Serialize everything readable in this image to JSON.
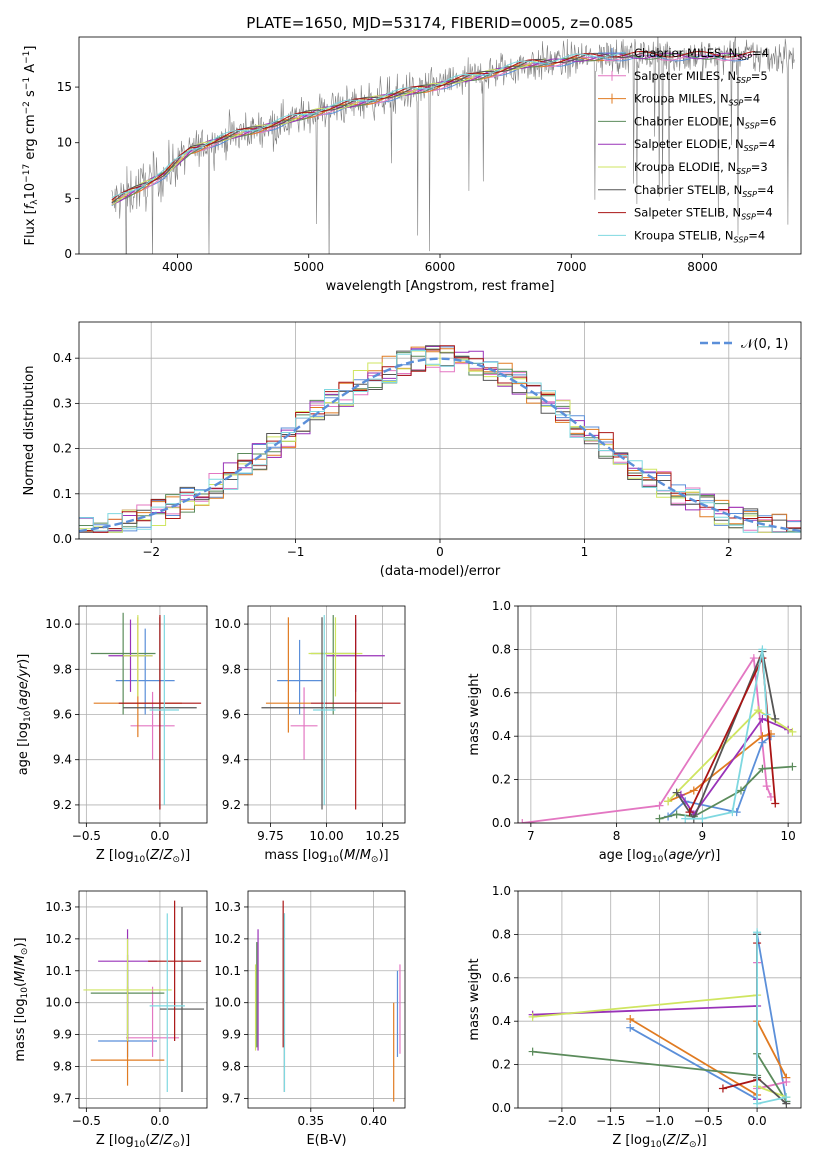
{
  "figure": {
    "title": "PLATE=1650, MJD=53174, FIBERID=0005, z=0.085",
    "colors": {
      "Chabrier MILES": "#5b8fd9",
      "Salpeter MILES": "#e377c2",
      "Kroupa MILES": "#e07b22",
      "Chabrier ELODIE": "#5b8b5b",
      "Salpeter ELODIE": "#9932b8",
      "Kroupa ELODIE": "#cfe560",
      "Chabrier STELIB": "#555555",
      "Salpeter STELIB": "#aa1515",
      "Kroupa STELIB": "#7fd8e0",
      "data": "#808080",
      "normal": "#5b8fd9"
    }
  },
  "legends": {
    "spectrum": [
      {
        "key": "Chabrier MILES",
        "label": "Chabrier MILES, N",
        "sub": "SSP",
        "tail": "=4"
      },
      {
        "key": "Salpeter MILES",
        "label": "Salpeter MILES, N",
        "sub": "SSP",
        "tail": "=5"
      },
      {
        "key": "Kroupa MILES",
        "label": "Kroupa MILES, N",
        "sub": "SSP",
        "tail": "=4"
      },
      {
        "key": "Chabrier ELODIE",
        "label": "Chabrier ELODIE, N",
        "sub": "SSP",
        "tail": "=6"
      },
      {
        "key": "Salpeter ELODIE",
        "label": "Salpeter ELODIE, N",
        "sub": "SSP",
        "tail": "=4"
      },
      {
        "key": "Kroupa ELODIE",
        "label": "Kroupa ELODIE, N",
        "sub": "SSP",
        "tail": "=3"
      },
      {
        "key": "Chabrier STELIB",
        "label": "Chabrier STELIB, N",
        "sub": "SSP",
        "tail": "=4"
      },
      {
        "key": "Salpeter STELIB",
        "label": "Salpeter STELIB, N",
        "sub": "SSP",
        "tail": "=4"
      },
      {
        "key": "Kroupa STELIB",
        "label": "Kroupa STELIB, N",
        "sub": "SSP",
        "tail": "=4"
      }
    ],
    "residual": {
      "label": "𝒩(0, 1)"
    }
  },
  "chart_data": [
    {
      "type": "line",
      "id": "spectrum",
      "xlabel": "wavelength [Angstrom, rest frame]",
      "ylabel": "Flux [f_λ10^-17 erg cm^-2 s^-1 A^-1]",
      "xlim": [
        3250,
        8750
      ],
      "ylim": [
        0,
        19.5
      ],
      "xticks": [
        4000,
        5000,
        6000,
        7000,
        8000
      ],
      "yticks": [
        0,
        5,
        10,
        15
      ],
      "grid": false,
      "legend": "right",
      "continuum": {
        "x": [
          3500,
          3700,
          3900,
          4100,
          4300,
          4500,
          4700,
          4900,
          5100,
          5300,
          5500,
          5700,
          5900,
          6100,
          6300,
          6500,
          6700,
          6900,
          7100,
          7300
        ],
        "y": [
          4.6,
          5.9,
          7.2,
          9.3,
          10.2,
          10.9,
          11.5,
          12.2,
          12.9,
          13.4,
          13.9,
          14.4,
          14.9,
          15.5,
          16.0,
          16.6,
          17.1,
          17.3,
          17.6,
          17.8
        ]
      },
      "models_end_x": [
        8350,
        8420,
        7250,
        8300,
        8300,
        6800,
        7700,
        8400,
        7400
      ],
      "data_end_x": 8700
    },
    {
      "type": "histogram",
      "id": "residual",
      "xlabel": "(data-model)/error",
      "ylabel": "Normed distribution",
      "xlim": [
        -2.5,
        2.5
      ],
      "ylim": [
        0,
        0.48
      ],
      "xticks": [
        -2,
        -1,
        0,
        1,
        2
      ],
      "yticks": [
        0.0,
        0.1,
        0.2,
        0.3,
        0.4
      ],
      "grid": true,
      "legend": "top-right",
      "bins": [
        -2.5,
        2.5
      ],
      "series": [
        {
          "name": "Kroupa ELODIE",
          "values": [
            0.05,
            0.056,
            0.09,
            0.3,
            0.458,
            0.31,
            0.24,
            0.046
          ]
        },
        {
          "name": "Chabrier MILES",
          "values": [
            0.022,
            0.04,
            0.06,
            0.25,
            0.398,
            0.33,
            0.295,
            0.038
          ]
        },
        {
          "name": "Salpeter STELIB",
          "values": [
            0.04,
            0.06,
            0.08,
            0.28,
            0.428,
            0.41,
            0.3,
            0.05
          ]
        }
      ],
      "normal": {
        "mean": 0,
        "sigma": 1
      }
    },
    {
      "type": "scatter",
      "id": "age_vs_Z",
      "xlabel": "Z [log10(Z/Z☉)]",
      "ylabel": "age [log10(age/yr)]",
      "xlim": [
        -0.55,
        0.32
      ],
      "ylim": [
        9.12,
        10.08
      ],
      "xticks": [
        -0.5,
        0.0
      ],
      "yticks": [
        9.2,
        9.4,
        9.6,
        9.8,
        10.0
      ],
      "grid": true,
      "points": [
        {
          "key": "Chabrier MILES",
          "x": -0.1,
          "y": 9.75,
          "xerr": 0.2,
          "yerr": [
            9.6,
            9.98
          ]
        },
        {
          "key": "Salpeter MILES",
          "x": -0.05,
          "y": 9.55,
          "xerr": 0.15,
          "yerr": [
            9.4,
            9.7
          ]
        },
        {
          "key": "Kroupa MILES",
          "x": -0.15,
          "y": 9.65,
          "xerr": 0.3,
          "yerr": [
            9.5,
            10.03
          ]
        },
        {
          "key": "Chabrier ELODIE",
          "x": -0.25,
          "y": 9.87,
          "xerr": 0.22,
          "yerr": [
            9.6,
            10.05
          ]
        },
        {
          "key": "Salpeter ELODIE",
          "x": -0.2,
          "y": 9.86,
          "xerr": 0.15,
          "yerr": [
            9.7,
            10.02
          ]
        },
        {
          "key": "Kroupa ELODIE",
          "x": -0.15,
          "y": 9.86,
          "xerr": 0.1,
          "yerr": [
            9.68,
            10.04
          ]
        },
        {
          "key": "Chabrier STELIB",
          "x": 0.0,
          "y": 9.63,
          "xerr": 0.25,
          "yerr": [
            9.18,
            10.03
          ]
        },
        {
          "key": "Salpeter STELIB",
          "x": 0.0,
          "y": 9.65,
          "xerr": 0.28,
          "yerr": [
            9.18,
            10.04
          ]
        },
        {
          "key": "Kroupa STELIB",
          "x": 0.03,
          "y": 9.62,
          "xerr": 0.1,
          "yerr": [
            9.2,
            10.04
          ]
        }
      ]
    },
    {
      "type": "scatter",
      "id": "age_vs_mass",
      "xlabel": "mass [log10(M/M☉)]",
      "ylabel": "",
      "xlim": [
        9.65,
        10.35
      ],
      "ylim": [
        9.12,
        10.08
      ],
      "xticks": [
        9.75,
        10.0,
        10.25
      ],
      "yticks": [
        9.2,
        9.4,
        9.6,
        9.8,
        10.0
      ],
      "grid": true,
      "points": [
        {
          "key": "Chabrier MILES",
          "x": 9.88,
          "y": 9.75,
          "xerr": 0.1,
          "yerr": [
            9.6,
            9.93
          ]
        },
        {
          "key": "Salpeter MILES",
          "x": 9.9,
          "y": 9.55,
          "xerr": 0.06,
          "yerr": [
            9.4,
            9.72
          ]
        },
        {
          "key": "Kroupa MILES",
          "x": 9.83,
          "y": 9.65,
          "xerr": 0.1,
          "yerr": [
            9.52,
            10.03
          ]
        },
        {
          "key": "Chabrier ELODIE",
          "x": 10.03,
          "y": 9.87,
          "xerr": 0.1,
          "yerr": [
            9.6,
            10.04
          ]
        },
        {
          "key": "Salpeter ELODIE",
          "x": 10.13,
          "y": 9.86,
          "xerr": 0.13,
          "yerr": [
            9.7,
            10.02
          ]
        },
        {
          "key": "Kroupa ELODIE",
          "x": 10.04,
          "y": 9.87,
          "xerr": 0.12,
          "yerr": [
            9.68,
            10.03
          ]
        },
        {
          "key": "Chabrier STELIB",
          "x": 9.98,
          "y": 9.63,
          "xerr": 0.27,
          "yerr": [
            9.18,
            10.03
          ]
        },
        {
          "key": "Salpeter STELIB",
          "x": 10.13,
          "y": 9.65,
          "xerr": 0.2,
          "yerr": [
            9.18,
            10.04
          ]
        },
        {
          "key": "Kroupa STELIB",
          "x": 9.99,
          "y": 9.62,
          "xerr": 0.05,
          "yerr": [
            9.2,
            10.04
          ]
        }
      ]
    },
    {
      "type": "line",
      "id": "massweight_vs_age",
      "xlabel": "age [log10(age/yr)]",
      "ylabel": "mass weight",
      "xlim": [
        6.85,
        10.15
      ],
      "ylim": [
        0,
        1
      ],
      "xticks": [
        7,
        8,
        9,
        10
      ],
      "yticks": [
        0.0,
        0.2,
        0.4,
        0.6,
        0.8,
        1.0
      ],
      "grid": true,
      "series": [
        {
          "key": "Salpeter MILES",
          "x": [
            6.9,
            8.5,
            9.6,
            9.75,
            9.8
          ],
          "y": [
            0.0,
            0.08,
            0.76,
            0.17,
            0.12
          ]
        },
        {
          "key": "Chabrier MILES",
          "x": [
            8.6,
            8.8,
            9.4,
            9.7,
            9.8
          ],
          "y": [
            0.03,
            0.1,
            0.05,
            0.37,
            0.4
          ]
        },
        {
          "key": "Kroupa MILES",
          "x": [
            8.6,
            8.9,
            9.7,
            9.8
          ],
          "y": [
            0.1,
            0.15,
            0.4,
            0.41
          ]
        },
        {
          "key": "Chabrier ELODIE",
          "x": [
            8.5,
            8.7,
            8.9,
            9.45,
            9.7,
            10.05
          ],
          "y": [
            0.02,
            0.04,
            0.03,
            0.15,
            0.25,
            0.26
          ]
        },
        {
          "key": "Salpeter ELODIE",
          "x": [
            8.75,
            8.9,
            9.7,
            10.0
          ],
          "y": [
            0.13,
            0.04,
            0.48,
            0.43
          ]
        },
        {
          "key": "Kroupa ELODIE",
          "x": [
            8.6,
            9.65,
            10.05
          ],
          "y": [
            0.1,
            0.52,
            0.42
          ]
        },
        {
          "key": "Chabrier STELIB",
          "x": [
            8.7,
            8.9,
            9.7,
            9.85
          ],
          "y": [
            0.14,
            0.02,
            0.79,
            0.48
          ]
        },
        {
          "key": "Salpeter STELIB",
          "x": [
            8.85,
            9.7,
            9.85
          ],
          "y": [
            0.05,
            0.76,
            0.09
          ]
        },
        {
          "key": "Kroupa STELIB",
          "x": [
            8.8,
            9.0,
            9.35,
            9.7,
            9.75
          ],
          "y": [
            0.02,
            0.02,
            0.05,
            0.8,
            0.5
          ]
        }
      ]
    },
    {
      "type": "scatter",
      "id": "mass_vs_Z",
      "xlabel": "Z [log10(Z/Z☉)]",
      "ylabel": "mass [log10(M/M☉)]",
      "xlim": [
        -0.55,
        0.32
      ],
      "ylim": [
        9.67,
        10.35
      ],
      "xticks": [
        -0.5,
        0.0
      ],
      "yticks": [
        9.7,
        9.8,
        9.9,
        10.0,
        10.1,
        10.2,
        10.3
      ],
      "grid": true,
      "points": [
        {
          "key": "Chabrier MILES",
          "x": -0.22,
          "y": 9.88,
          "xerr": 0.2,
          "yerr": [
            9.83,
            10.1
          ]
        },
        {
          "key": "Salpeter MILES",
          "x": -0.05,
          "y": 9.89,
          "xerr": 0.18,
          "yerr": [
            9.83,
            10.05
          ]
        },
        {
          "key": "Kroupa MILES",
          "x": -0.22,
          "y": 9.82,
          "xerr": 0.25,
          "yerr": [
            9.74,
            10.05
          ]
        },
        {
          "key": "Chabrier ELODIE",
          "x": -0.22,
          "y": 10.03,
          "xerr": 0.25,
          "yerr": [
            9.88,
            10.15
          ]
        },
        {
          "key": "Salpeter ELODIE",
          "x": -0.22,
          "y": 10.13,
          "xerr": 0.2,
          "yerr": [
            9.88,
            10.23
          ]
        },
        {
          "key": "Kroupa ELODIE",
          "x": -0.22,
          "y": 10.04,
          "xerr": 0.3,
          "yerr": [
            9.88,
            10.2
          ]
        },
        {
          "key": "Chabrier STELIB",
          "x": 0.15,
          "y": 9.98,
          "xerr": 0.15,
          "yerr": [
            9.72,
            10.3
          ]
        },
        {
          "key": "Salpeter STELIB",
          "x": 0.1,
          "y": 10.13,
          "xerr": 0.18,
          "yerr": [
            9.88,
            10.32
          ]
        },
        {
          "key": "Kroupa STELIB",
          "x": 0.05,
          "y": 9.99,
          "xerr": 0.12,
          "yerr": [
            9.72,
            10.28
          ]
        }
      ]
    },
    {
      "type": "scatter",
      "id": "mass_vs_EBV",
      "xlabel": "E(B-V)",
      "ylabel": "",
      "xlim": [
        0.3,
        0.425
      ],
      "ylim": [
        9.67,
        10.35
      ],
      "xticks": [
        0.35,
        0.4
      ],
      "yticks": [
        9.7,
        9.8,
        9.9,
        10.0,
        10.1,
        10.2,
        10.3
      ],
      "grid": true,
      "points": [
        {
          "key": "Chabrier MILES",
          "x": 0.419,
          "y": 9.88,
          "yerr": [
            9.83,
            10.1
          ]
        },
        {
          "key": "Salpeter MILES",
          "x": 0.421,
          "y": 9.89,
          "yerr": [
            9.84,
            10.12
          ]
        },
        {
          "key": "Kroupa MILES",
          "x": 0.416,
          "y": 9.82,
          "yerr": [
            9.69,
            10.0
          ]
        },
        {
          "key": "Chabrier ELODIE",
          "x": 0.307,
          "y": 10.03,
          "yerr": [
            9.86,
            10.19
          ]
        },
        {
          "key": "Salpeter ELODIE",
          "x": 0.308,
          "y": 10.04,
          "yerr": [
            9.85,
            10.23
          ]
        },
        {
          "key": "Kroupa ELODIE",
          "x": 0.306,
          "y": 10.04,
          "yerr": [
            9.85,
            10.12
          ]
        },
        {
          "key": "Chabrier STELIB",
          "x": 0.329,
          "y": 9.98,
          "yerr": [
            9.72,
            10.28
          ]
        },
        {
          "key": "Salpeter STELIB",
          "x": 0.328,
          "y": 10.13,
          "yerr": [
            9.86,
            10.32
          ]
        },
        {
          "key": "Kroupa STELIB",
          "x": 0.329,
          "y": 9.99,
          "yerr": [
            9.72,
            10.28
          ]
        }
      ]
    },
    {
      "type": "line",
      "id": "massweight_vs_Z",
      "xlabel": "Z [log10(Z/Z☉)]",
      "ylabel": "mass weight",
      "xlim": [
        -2.45,
        0.45
      ],
      "ylim": [
        0,
        1
      ],
      "xticks": [
        -2.0,
        -1.5,
        -1.0,
        -0.5,
        0.0
      ],
      "yticks": [
        0.0,
        0.2,
        0.4,
        0.6,
        0.8,
        1.0
      ],
      "grid": true,
      "series": [
        {
          "key": "Chabrier MILES",
          "x": [
            -1.3,
            0.0,
            0.0,
            0.3
          ],
          "y": [
            0.37,
            0.04,
            0.8,
            0.03
          ]
        },
        {
          "key": "Kroupa MILES",
          "x": [
            -1.3,
            0.0,
            0.0,
            0.3
          ],
          "y": [
            0.41,
            0.06,
            0.4,
            0.14
          ]
        },
        {
          "key": "Salpeter MILES",
          "x": [
            0.0,
            0.0,
            0.3
          ],
          "y": [
            0.67,
            0.09,
            0.12
          ]
        },
        {
          "key": "Chabrier ELODIE",
          "x": [
            -2.3,
            0.0,
            0.0,
            0.3
          ],
          "y": [
            0.26,
            0.15,
            0.25,
            0.03
          ]
        },
        {
          "key": "Salpeter ELODIE",
          "x": [
            -2.3,
            0.0,
            0.0
          ],
          "y": [
            0.43,
            0.47,
            0.04
          ]
        },
        {
          "key": "Kroupa ELODIE",
          "x": [
            -2.3,
            0.0,
            0.0,
            0.3
          ],
          "y": [
            0.42,
            0.52,
            0.1,
            0.05
          ]
        },
        {
          "key": "Chabrier STELIB",
          "x": [
            0.0,
            0.0,
            0.3
          ],
          "y": [
            0.8,
            0.14,
            0.02
          ]
        },
        {
          "key": "Salpeter STELIB",
          "x": [
            -0.35,
            0.0,
            0.0
          ],
          "y": [
            0.09,
            0.13,
            0.76
          ]
        },
        {
          "key": "Kroupa STELIB",
          "x": [
            0.0,
            0.0,
            0.3
          ],
          "y": [
            0.81,
            0.02,
            0.05
          ]
        }
      ]
    }
  ]
}
